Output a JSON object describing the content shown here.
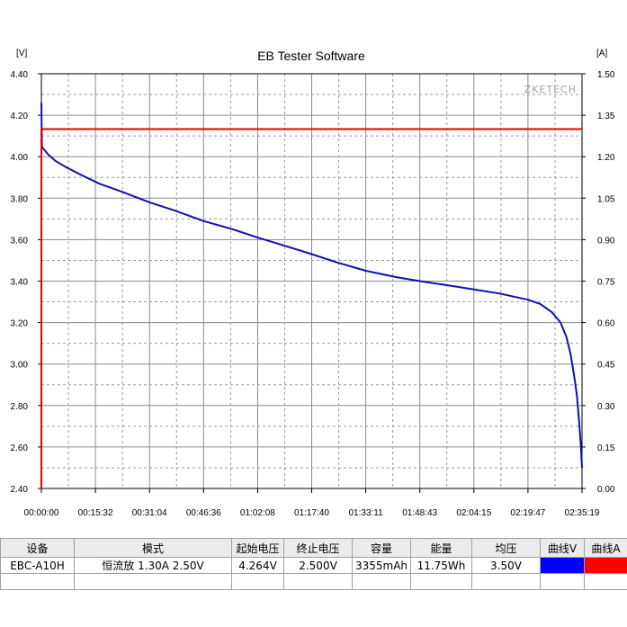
{
  "app": {
    "title": "EB Tester Software",
    "watermark": "ZKETECH"
  },
  "chart_data": {
    "type": "line",
    "title": "EB Tester Software",
    "left_unit": "[V]",
    "right_unit": "[A]",
    "grid": true,
    "x_unit": "seconds",
    "x_range": [
      0,
      9319
    ],
    "x_tick_labels": [
      "00:00:00",
      "00:15:32",
      "00:31:04",
      "00:46:36",
      "01:02:08",
      "01:17:40",
      "01:33:11",
      "01:48:43",
      "02:04:15",
      "02:19:47",
      "02:35:19"
    ],
    "y_left_range": [
      2.4,
      4.4
    ],
    "y_left_ticks": [
      "2.40",
      "2.60",
      "2.80",
      "3.00",
      "3.20",
      "3.40",
      "3.60",
      "3.80",
      "4.00",
      "4.20",
      "4.40"
    ],
    "y_right_range": [
      0.0,
      1.5
    ],
    "y_right_ticks": [
      "0.00",
      "0.15",
      "0.30",
      "0.45",
      "0.60",
      "0.75",
      "0.90",
      "1.05",
      "1.20",
      "1.35",
      "1.50"
    ],
    "series": [
      {
        "name": "曲线V",
        "axis": "left",
        "color": "#1010b0",
        "x": [
          0,
          10,
          30,
          60,
          120,
          240,
          420,
          700,
          1000,
          1400,
          1864,
          2300,
          2796,
          3300,
          3728,
          4200,
          4660,
          5100,
          5592,
          6100,
          6522,
          7000,
          7455,
          7900,
          8387,
          8600,
          8800,
          8950,
          9050,
          9120,
          9180,
          9230,
          9270,
          9300,
          9319
        ],
        "values": [
          4.26,
          4.05,
          4.04,
          4.03,
          4.01,
          3.98,
          3.95,
          3.91,
          3.87,
          3.83,
          3.78,
          3.74,
          3.69,
          3.65,
          3.61,
          3.57,
          3.53,
          3.49,
          3.45,
          3.42,
          3.4,
          3.38,
          3.36,
          3.34,
          3.31,
          3.29,
          3.25,
          3.2,
          3.13,
          3.05,
          2.95,
          2.85,
          2.72,
          2.6,
          2.5
        ]
      },
      {
        "name": "曲线A",
        "axis": "right",
        "color": "#e00000",
        "x": [
          0,
          0,
          2,
          9319
        ],
        "values": [
          0.0,
          1.3,
          1.3,
          1.3
        ]
      }
    ]
  },
  "table": {
    "headers": [
      "设备",
      "模式",
      "起始电压",
      "终止电压",
      "容量",
      "能量",
      "均压",
      "曲线V",
      "曲线A"
    ],
    "row": {
      "device": "EBC-A10H",
      "mode": "恒流放  1.30A  2.50V",
      "start_voltage": "4.264V",
      "end_voltage": "2.500V",
      "capacity": "3355mAh",
      "energy": "11.75Wh",
      "avg_voltage": "3.50V"
    },
    "curve_v_color": "#0000ff",
    "curve_a_color": "#ff0000"
  }
}
